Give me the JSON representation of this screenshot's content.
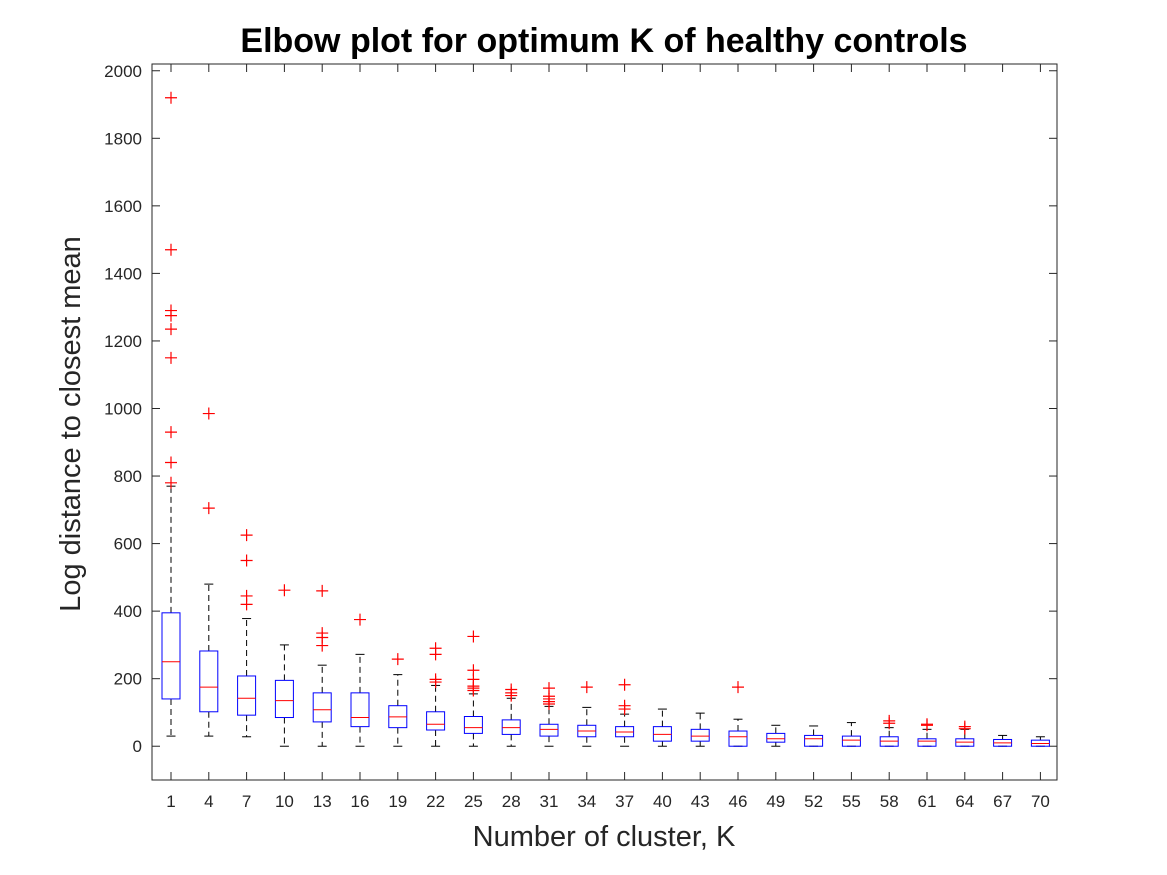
{
  "chart_data": {
    "type": "box",
    "title": "Elbow plot for optimum K of healthy controls",
    "xlabel": "Number of cluster, K",
    "ylabel": "Log distance to closest mean",
    "ylim": [
      -100,
      2020
    ],
    "yticks": [
      0,
      200,
      400,
      600,
      800,
      1000,
      1200,
      1400,
      1600,
      1800,
      2000
    ],
    "grid": false,
    "colors": {
      "box": "#0000ff",
      "median": "#ff0000",
      "whisker": "#000000",
      "outlier": "#ff0000"
    },
    "categories": [
      "1",
      "4",
      "7",
      "10",
      "13",
      "16",
      "19",
      "22",
      "25",
      "28",
      "31",
      "34",
      "37",
      "40",
      "43",
      "46",
      "49",
      "52",
      "55",
      "58",
      "61",
      "64",
      "67",
      "70"
    ],
    "boxes": [
      {
        "k": "1",
        "q1": 140,
        "median": 250,
        "q3": 395,
        "whisker_low": 30,
        "whisker_high": 770,
        "outliers": [
          1920,
          1470,
          1290,
          1275,
          1235,
          1150,
          930,
          840,
          780
        ]
      },
      {
        "k": "4",
        "q1": 102,
        "median": 175,
        "q3": 282,
        "whisker_low": 30,
        "whisker_high": 480,
        "outliers": [
          985,
          705
        ]
      },
      {
        "k": "7",
        "q1": 92,
        "median": 142,
        "q3": 208,
        "whisker_low": 28,
        "whisker_high": 378,
        "outliers": [
          625,
          550,
          445,
          420
        ]
      },
      {
        "k": "10",
        "q1": 85,
        "median": 135,
        "q3": 195,
        "whisker_low": 0,
        "whisker_high": 300,
        "outliers": [
          462
        ]
      },
      {
        "k": "13",
        "q1": 72,
        "median": 108,
        "q3": 158,
        "whisker_low": 0,
        "whisker_high": 240,
        "outliers": [
          460,
          335,
          322,
          298
        ]
      },
      {
        "k": "16",
        "q1": 58,
        "median": 85,
        "q3": 158,
        "whisker_low": 0,
        "whisker_high": 272,
        "outliers": [
          375
        ]
      },
      {
        "k": "19",
        "q1": 55,
        "median": 87,
        "q3": 120,
        "whisker_low": 0,
        "whisker_high": 212,
        "outliers": [
          258
        ]
      },
      {
        "k": "22",
        "q1": 48,
        "median": 65,
        "q3": 102,
        "whisker_low": 0,
        "whisker_high": 180,
        "outliers": [
          290,
          272,
          198,
          190
        ]
      },
      {
        "k": "25",
        "q1": 38,
        "median": 55,
        "q3": 88,
        "whisker_low": 0,
        "whisker_high": 155,
        "outliers": [
          325,
          225,
          198,
          178,
          172,
          165
        ]
      },
      {
        "k": "28",
        "q1": 35,
        "median": 55,
        "q3": 78,
        "whisker_low": 0,
        "whisker_high": 142,
        "outliers": [
          168,
          158,
          150
        ]
      },
      {
        "k": "31",
        "q1": 30,
        "median": 50,
        "q3": 65,
        "whisker_low": 0,
        "whisker_high": 118,
        "outliers": [
          172,
          148,
          140,
          132,
          125
        ]
      },
      {
        "k": "34",
        "q1": 28,
        "median": 45,
        "q3": 62,
        "whisker_low": 0,
        "whisker_high": 115,
        "outliers": [
          175
        ]
      },
      {
        "k": "37",
        "q1": 28,
        "median": 42,
        "q3": 58,
        "whisker_low": 0,
        "whisker_high": 95,
        "outliers": [
          182,
          120,
          110
        ]
      },
      {
        "k": "40",
        "q1": 15,
        "median": 35,
        "q3": 58,
        "whisker_low": 0,
        "whisker_high": 110,
        "outliers": []
      },
      {
        "k": "43",
        "q1": 15,
        "median": 30,
        "q3": 50,
        "whisker_low": 0,
        "whisker_high": 98,
        "outliers": []
      },
      {
        "k": "46",
        "q1": 0,
        "median": 28,
        "q3": 45,
        "whisker_low": 0,
        "whisker_high": 80,
        "outliers": [
          175
        ]
      },
      {
        "k": "49",
        "q1": 12,
        "median": 22,
        "q3": 38,
        "whisker_low": 0,
        "whisker_high": 62,
        "outliers": []
      },
      {
        "k": "52",
        "q1": 0,
        "median": 22,
        "q3": 32,
        "whisker_low": 0,
        "whisker_high": 60,
        "outliers": []
      },
      {
        "k": "55",
        "q1": 0,
        "median": 18,
        "q3": 30,
        "whisker_low": 0,
        "whisker_high": 70,
        "outliers": []
      },
      {
        "k": "58",
        "q1": 0,
        "median": 15,
        "q3": 28,
        "whisker_low": 0,
        "whisker_high": 55,
        "outliers": [
          75,
          68
        ]
      },
      {
        "k": "61",
        "q1": 0,
        "median": 15,
        "q3": 22,
        "whisker_low": 0,
        "whisker_high": 50,
        "outliers": [
          65,
          62
        ]
      },
      {
        "k": "64",
        "q1": 0,
        "median": 12,
        "q3": 22,
        "whisker_low": 0,
        "whisker_high": 50,
        "outliers": [
          58,
          52
        ]
      },
      {
        "k": "67",
        "q1": 0,
        "median": 10,
        "q3": 20,
        "whisker_low": 0,
        "whisker_high": 32,
        "outliers": []
      },
      {
        "k": "70",
        "q1": 0,
        "median": 8,
        "q3": 18,
        "whisker_low": 0,
        "whisker_high": 28,
        "outliers": []
      }
    ]
  }
}
